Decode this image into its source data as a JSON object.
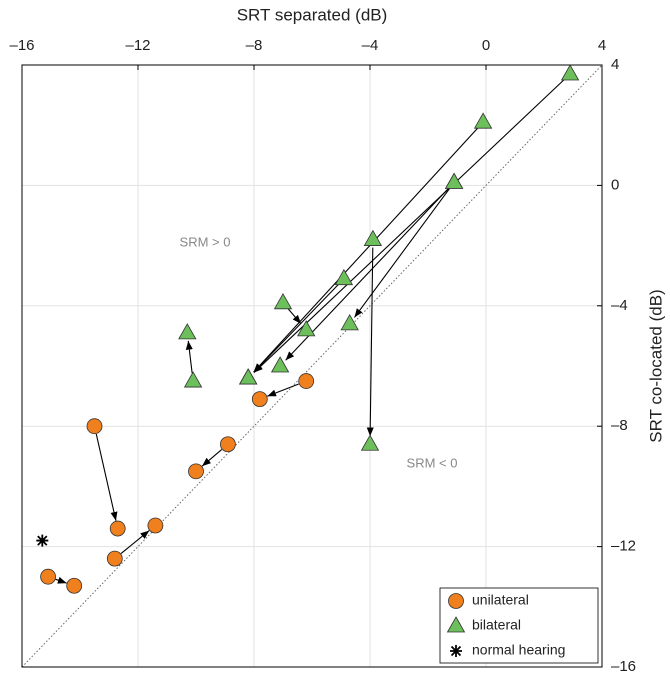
{
  "chart_data": {
    "type": "scatter",
    "xlabel": "SRT separated (dB)",
    "ylabel": "SRT co-located (dB)",
    "xlim": [
      -16,
      4
    ],
    "ylim": [
      -16,
      4
    ],
    "xticks": [
      {
        "value": -16,
        "label": "–16"
      },
      {
        "value": -12,
        "label": "–12"
      },
      {
        "value": -8,
        "label": "–8"
      },
      {
        "value": -4,
        "label": "–4"
      },
      0,
      4
    ],
    "yticks": [
      {
        "value": -16,
        "label": "–16"
      },
      {
        "value": -12,
        "label": "–12"
      },
      {
        "value": -8,
        "label": "–8"
      },
      {
        "value": -4,
        "label": "–4"
      },
      0,
      4
    ],
    "grid": true,
    "diagonal": true,
    "arrows": true,
    "legend": "lower right",
    "annotations": [
      "SRM > 0",
      "SRM < 0"
    ],
    "series": [
      {
        "name": "unilateral",
        "color": "#f07f1e",
        "marker": "circle",
        "x": [
          -15.1,
          -14.2,
          -13.5,
          -12.7,
          -12.8,
          -11.4,
          -8.9,
          -10.0,
          -6.2,
          -7.8
        ],
        "values": [
          -13.0,
          -13.3,
          -8.0,
          -11.4,
          -12.4,
          -11.3,
          -8.6,
          -9.5,
          -6.5,
          -7.1
        ]
      },
      {
        "name": "bilateral",
        "color": "#6cbf5a",
        "marker": "triangle",
        "x": [
          2.9,
          -8.2,
          -0.1,
          -8.2,
          -1.1,
          -4.7,
          -1.1,
          -7.1,
          -3.9,
          -4.0,
          -4.9,
          -8.2,
          -7.0,
          -6.2,
          -10.1,
          -10.3
        ],
        "values": [
          3.7,
          -6.4,
          2.1,
          -6.4,
          0.1,
          -4.6,
          0.1,
          -6.0,
          -1.8,
          -8.6,
          -3.1,
          -6.4,
          -3.9,
          -4.8,
          -6.5,
          -4.9
        ]
      },
      {
        "name": "normal hearing",
        "color": "#000000",
        "marker": "asterisk",
        "x": [
          -15.3
        ],
        "values": [
          -11.8
        ]
      }
    ]
  }
}
